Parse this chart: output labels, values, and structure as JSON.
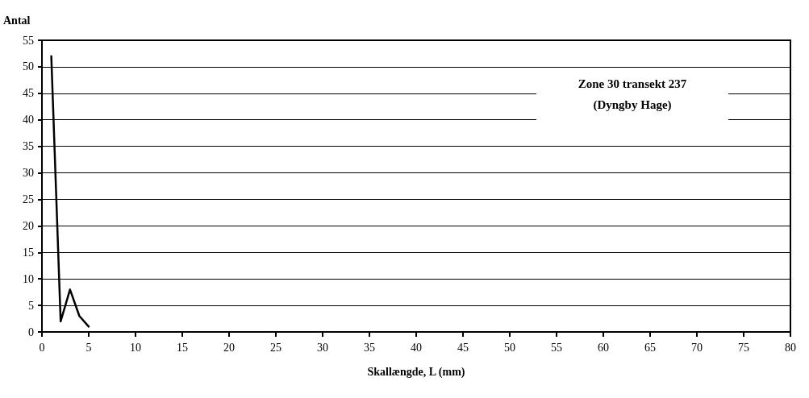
{
  "chart_data": {
    "type": "line",
    "title": "Zone 30 transekt 237\n(Dyngby Hage)",
    "xlabel": "Skallængde, L (mm)",
    "ylabel": "Antal",
    "x": [
      1,
      2,
      3,
      4,
      5
    ],
    "series": [
      {
        "color": "#000000",
        "values": [
          52,
          2,
          8,
          3,
          1
        ]
      }
    ],
    "xlim": [
      0,
      80
    ],
    "xticks": [
      0,
      5,
      10,
      15,
      20,
      25,
      30,
      35,
      40,
      45,
      50,
      55,
      60,
      65,
      70,
      75,
      80
    ],
    "ylim": [
      0,
      55
    ],
    "yticks": [
      0,
      5,
      10,
      15,
      20,
      25,
      30,
      35,
      40,
      45,
      50,
      55
    ],
    "grid": "y",
    "marker": "none",
    "line_style": "solid"
  }
}
